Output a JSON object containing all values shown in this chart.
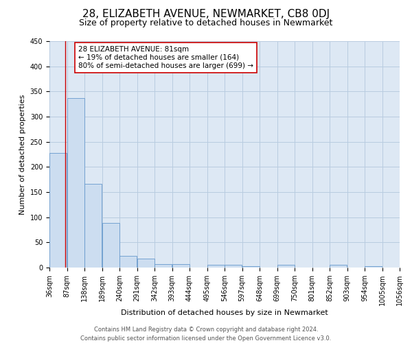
{
  "title": "28, ELIZABETH AVENUE, NEWMARKET, CB8 0DJ",
  "subtitle": "Size of property relative to detached houses in Newmarket",
  "xlabel": "Distribution of detached houses by size in Newmarket",
  "ylabel": "Number of detached properties",
  "bin_edges": [
    36,
    87,
    138,
    189,
    240,
    291,
    342,
    393,
    444,
    495,
    546,
    597,
    648,
    699,
    750,
    801,
    852,
    903,
    954,
    1005,
    1056
  ],
  "bin_labels": [
    "36sqm",
    "87sqm",
    "138sqm",
    "189sqm",
    "240sqm",
    "291sqm",
    "342sqm",
    "393sqm",
    "444sqm",
    "495sqm",
    "546sqm",
    "597sqm",
    "648sqm",
    "699sqm",
    "750sqm",
    "801sqm",
    "852sqm",
    "903sqm",
    "954sqm",
    "1005sqm",
    "1056sqm"
  ],
  "counts": [
    228,
    337,
    166,
    89,
    23,
    18,
    7,
    7,
    0,
    6,
    5,
    3,
    0,
    5,
    0,
    0,
    5,
    0,
    3,
    0
  ],
  "bar_color": "#ccddf0",
  "bar_edge_color": "#6699cc",
  "property_value": 81,
  "vline_color": "#cc0000",
  "annotation_text": "28 ELIZABETH AVENUE: 81sqm\n← 19% of detached houses are smaller (164)\n80% of semi-detached houses are larger (699) →",
  "annotation_box_edge_color": "#cc0000",
  "annotation_box_face_color": "#ffffff",
  "ylim": [
    0,
    450
  ],
  "yticks": [
    0,
    50,
    100,
    150,
    200,
    250,
    300,
    350,
    400,
    450
  ],
  "footer_line1": "Contains HM Land Registry data © Crown copyright and database right 2024.",
  "footer_line2": "Contains public sector information licensed under the Open Government Licence v3.0.",
  "background_color": "#ffffff",
  "plot_bg_color": "#dde8f4",
  "grid_color": "#b8cce0",
  "title_fontsize": 11,
  "subtitle_fontsize": 9,
  "axis_label_fontsize": 8,
  "tick_fontsize": 7,
  "annotation_fontsize": 7.5,
  "footer_fontsize": 6
}
